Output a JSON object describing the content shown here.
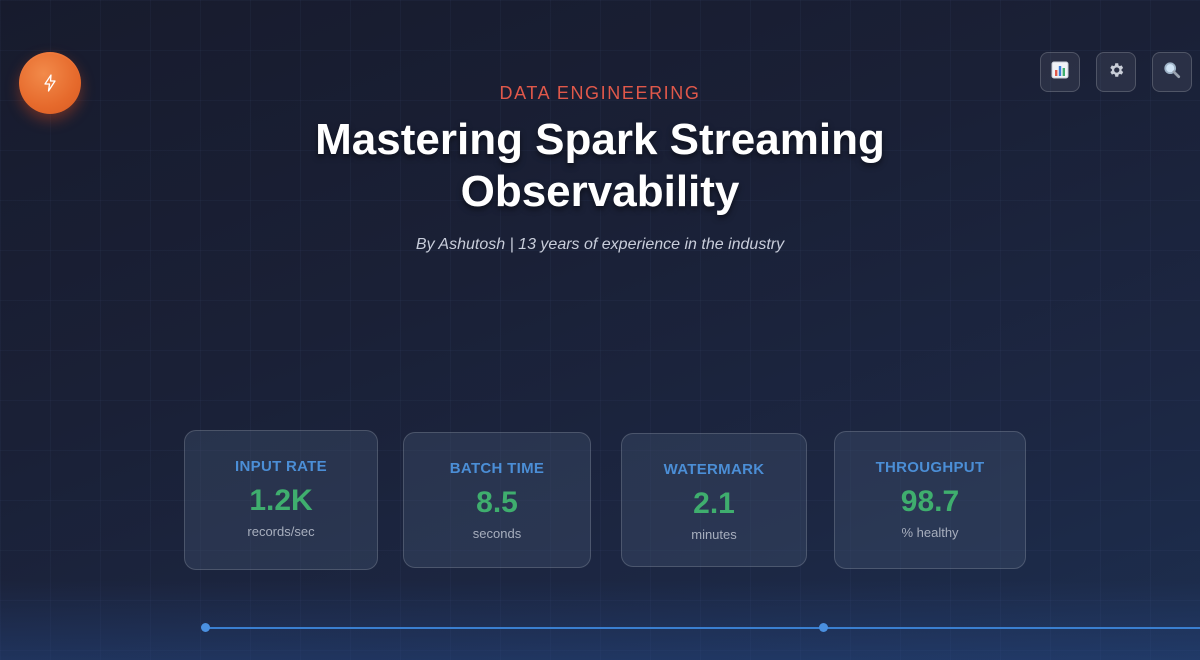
{
  "brand": {
    "icon": "lightning-icon"
  },
  "toolbar": {
    "buttons": [
      {
        "icon": "bar-chart-icon"
      },
      {
        "icon": "gear-icon"
      },
      {
        "icon": "search-icon"
      }
    ]
  },
  "header": {
    "eyebrow": "DATA ENGINEERING",
    "title": "Mastering Spark Streaming Observability",
    "byline": "By Ashutosh | 13 years of experience in the industry"
  },
  "metrics": [
    {
      "label": "INPUT RATE",
      "value": "1.2K",
      "unit": "records/sec"
    },
    {
      "label": "BATCH TIME",
      "value": "8.5",
      "unit": "seconds"
    },
    {
      "label": "WATERMARK",
      "value": "2.1",
      "unit": "minutes"
    },
    {
      "label": "THROUGHPUT",
      "value": "98.7",
      "unit": "% healthy"
    }
  ],
  "colors": {
    "accent_red": "#e0584a",
    "label_blue": "#4b8ed6",
    "value_green": "#3fae6e",
    "brand_orange": "#e66a2c",
    "timeline_blue": "#3a7fd0"
  }
}
